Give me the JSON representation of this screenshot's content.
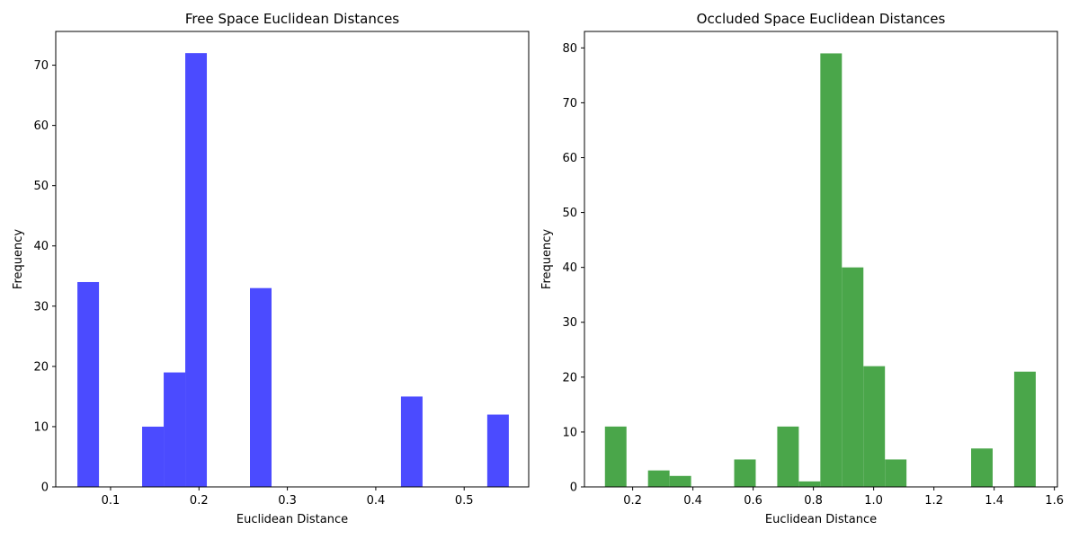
{
  "chart_data": [
    {
      "type": "bar",
      "title": "Free Space Euclidean Distances",
      "xlabel": "Euclidean Distance",
      "ylabel": "Frequency",
      "color": "#4b4bff",
      "xlim": [
        0.038,
        0.573
      ],
      "ylim": [
        0,
        75.6
      ],
      "xticks": [
        0.1,
        0.2,
        0.3,
        0.4,
        0.5
      ],
      "xtick_labels": [
        "0.1",
        "0.2",
        "0.3",
        "0.4",
        "0.5"
      ],
      "yticks": [
        0,
        10,
        20,
        30,
        40,
        50,
        60,
        70
      ],
      "ytick_labels": [
        "0",
        "10",
        "20",
        "30",
        "40",
        "50",
        "60",
        "70"
      ],
      "bin_edges": [
        0.0625,
        0.0869,
        0.1113,
        0.1357,
        0.1601,
        0.1845,
        0.2089,
        0.2333,
        0.2577,
        0.2821,
        0.3065,
        0.3309,
        0.3553,
        0.3797,
        0.4041,
        0.4285,
        0.4529,
        0.4773,
        0.5017,
        0.5261,
        0.5505
      ],
      "counts": [
        34,
        0,
        0,
        10,
        19,
        72,
        0,
        0,
        33,
        0,
        0,
        0,
        0,
        0,
        0,
        15,
        0,
        0,
        0,
        12
      ],
      "grid": false
    },
    {
      "type": "bar",
      "title": "Occluded Space Euclidean Distances",
      "xlabel": "Euclidean Distance",
      "ylabel": "Frequency",
      "color": "#4aa64a",
      "xlim": [
        0.04,
        1.61
      ],
      "ylim": [
        0,
        83
      ],
      "xticks": [
        0.2,
        0.4,
        0.6,
        0.8,
        1.0,
        1.2,
        1.4,
        1.6
      ],
      "xtick_labels": [
        "0.2",
        "0.4",
        "0.6",
        "0.8",
        "1.0",
        "1.2",
        "1.4",
        "1.6"
      ],
      "yticks": [
        0,
        10,
        20,
        30,
        40,
        50,
        60,
        70,
        80
      ],
      "ytick_labels": [
        "0",
        "10",
        "20",
        "30",
        "40",
        "50",
        "60",
        "70",
        "80"
      ],
      "bin_edges": [
        0.108,
        0.1795,
        0.251,
        0.3225,
        0.394,
        0.4655,
        0.537,
        0.6085,
        0.68,
        0.7515,
        0.823,
        0.8945,
        0.966,
        1.0375,
        1.109,
        1.1805,
        1.252,
        1.3235,
        1.395,
        1.4665,
        1.538
      ],
      "counts": [
        11,
        0,
        3,
        2,
        0,
        0,
        5,
        0,
        11,
        1,
        79,
        40,
        22,
        5,
        0,
        0,
        0,
        7,
        0,
        21
      ],
      "grid": false
    }
  ]
}
